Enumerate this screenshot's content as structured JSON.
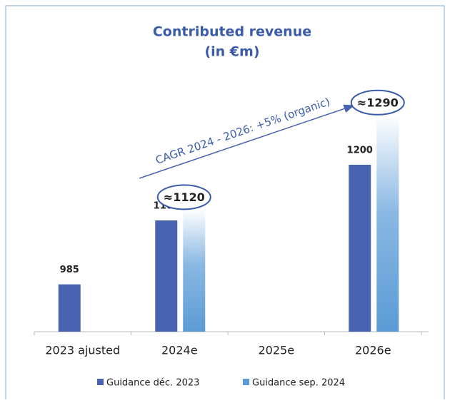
{
  "chart_data": {
    "type": "bar",
    "title": [
      "Contributed revenue",
      "(in €m)"
    ],
    "annotation": "CAGR 2024 - 2026: +5% (organic)",
    "categories": [
      "2023 ajusted",
      "2024e",
      "2025e",
      "2026e"
    ],
    "series": [
      {
        "name": "Guidance déc. 2023",
        "color": "#4a63b0",
        "values": [
          985,
          1100,
          null,
          1200
        ]
      },
      {
        "name": "Guidance sep. 2024",
        "color": "#5b9bd5",
        "values": [
          null,
          1120,
          null,
          1290
        ],
        "value_labels": [
          null,
          "≈1120",
          null,
          "≈1290"
        ]
      }
    ],
    "ylim": [
      900,
      1400
    ],
    "grid": false,
    "legend": "bottom"
  }
}
